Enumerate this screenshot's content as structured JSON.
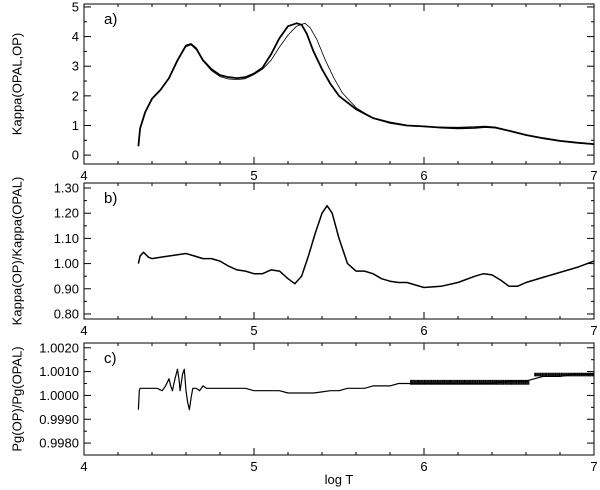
{
  "chart_data": [
    {
      "type": "line",
      "panel_label": "a)",
      "xlabel": "",
      "ylabel": "Kappa(OPAL,OP)",
      "xlim": [
        4,
        7
      ],
      "ylim": [
        -0.3,
        5.1
      ],
      "yticks": [
        0,
        1,
        2,
        3,
        4,
        5
      ],
      "ytick_labels": [
        "0",
        "1",
        "2",
        "3",
        "4",
        "5"
      ],
      "xticks": [
        4,
        5,
        6,
        7
      ],
      "xtick_labels": [
        "4",
        "5",
        "6",
        "7"
      ],
      "grid": false,
      "series": [
        {
          "color": "#000000",
          "width": 1.8,
          "points": [
            [
              4.32,
              0.3
            ],
            [
              4.33,
              0.9
            ],
            [
              4.36,
              1.45
            ],
            [
              4.4,
              1.9
            ],
            [
              4.45,
              2.2
            ],
            [
              4.5,
              2.6
            ],
            [
              4.55,
              3.2
            ],
            [
              4.6,
              3.7
            ],
            [
              4.63,
              3.75
            ],
            [
              4.66,
              3.6
            ],
            [
              4.7,
              3.2
            ],
            [
              4.75,
              2.9
            ],
            [
              4.8,
              2.7
            ],
            [
              4.85,
              2.63
            ],
            [
              4.9,
              2.6
            ],
            [
              4.95,
              2.63
            ],
            [
              5.0,
              2.75
            ],
            [
              5.05,
              2.95
            ],
            [
              5.1,
              3.4
            ],
            [
              5.15,
              3.95
            ],
            [
              5.2,
              4.35
            ],
            [
              5.25,
              4.45
            ],
            [
              5.28,
              4.4
            ],
            [
              5.31,
              4.1
            ],
            [
              5.35,
              3.5
            ],
            [
              5.4,
              2.9
            ],
            [
              5.45,
              2.4
            ],
            [
              5.5,
              2.0
            ],
            [
              5.6,
              1.55
            ],
            [
              5.7,
              1.25
            ],
            [
              5.8,
              1.1
            ],
            [
              5.9,
              1.0
            ],
            [
              6.0,
              0.97
            ],
            [
              6.1,
              0.93
            ],
            [
              6.2,
              0.9
            ],
            [
              6.3,
              0.92
            ],
            [
              6.36,
              0.95
            ],
            [
              6.42,
              0.93
            ],
            [
              6.5,
              0.82
            ],
            [
              6.6,
              0.68
            ],
            [
              6.7,
              0.57
            ],
            [
              6.8,
              0.48
            ],
            [
              6.9,
              0.42
            ],
            [
              7.0,
              0.37
            ]
          ]
        },
        {
          "color": "#000000",
          "width": 0.8,
          "points": [
            [
              4.32,
              0.3
            ],
            [
              4.33,
              0.9
            ],
            [
              4.36,
              1.45
            ],
            [
              4.4,
              1.9
            ],
            [
              4.45,
              2.2
            ],
            [
              4.5,
              2.6
            ],
            [
              4.55,
              3.2
            ],
            [
              4.6,
              3.66
            ],
            [
              4.63,
              3.72
            ],
            [
              4.66,
              3.56
            ],
            [
              4.7,
              3.18
            ],
            [
              4.75,
              2.85
            ],
            [
              4.8,
              2.65
            ],
            [
              4.85,
              2.57
            ],
            [
              4.9,
              2.55
            ],
            [
              4.95,
              2.58
            ],
            [
              5.0,
              2.72
            ],
            [
              5.05,
              2.9
            ],
            [
              5.1,
              3.2
            ],
            [
              5.15,
              3.65
            ],
            [
              5.2,
              4.05
            ],
            [
              5.25,
              4.35
            ],
            [
              5.3,
              4.45
            ],
            [
              5.33,
              4.3
            ],
            [
              5.37,
              3.9
            ],
            [
              5.42,
              3.2
            ],
            [
              5.47,
              2.6
            ],
            [
              5.52,
              2.1
            ],
            [
              5.6,
              1.6
            ],
            [
              5.7,
              1.25
            ],
            [
              5.8,
              1.07
            ],
            [
              5.9,
              0.99
            ],
            [
              6.0,
              0.96
            ],
            [
              6.1,
              0.95
            ],
            [
              6.2,
              0.94
            ],
            [
              6.3,
              0.96
            ],
            [
              6.36,
              0.98
            ],
            [
              6.42,
              0.95
            ],
            [
              6.5,
              0.82
            ],
            [
              6.6,
              0.67
            ],
            [
              6.7,
              0.56
            ],
            [
              6.8,
              0.47
            ],
            [
              6.9,
              0.41
            ],
            [
              7.0,
              0.36
            ]
          ]
        }
      ]
    },
    {
      "type": "line",
      "panel_label": "b)",
      "xlabel": "",
      "ylabel": "Kappa(OP)/Kappa(OPAL)",
      "xlim": [
        4,
        7
      ],
      "ylim": [
        0.78,
        1.32
      ],
      "yticks": [
        0.8,
        0.9,
        1.0,
        1.1,
        1.2,
        1.3
      ],
      "ytick_labels": [
        "0.80",
        "0.90",
        "1.00",
        "1.10",
        "1.20",
        "1.30"
      ],
      "xticks": [
        4,
        5,
        6,
        7
      ],
      "xtick_labels": [
        "4",
        "5",
        "6",
        "7"
      ],
      "grid": false,
      "series": [
        {
          "color": "#000000",
          "width": 1.5,
          "points": [
            [
              4.32,
              1.0
            ],
            [
              4.33,
              1.03
            ],
            [
              4.35,
              1.045
            ],
            [
              4.38,
              1.025
            ],
            [
              4.4,
              1.02
            ],
            [
              4.45,
              1.025
            ],
            [
              4.5,
              1.03
            ],
            [
              4.55,
              1.035
            ],
            [
              4.6,
              1.04
            ],
            [
              4.65,
              1.03
            ],
            [
              4.7,
              1.02
            ],
            [
              4.75,
              1.02
            ],
            [
              4.8,
              1.01
            ],
            [
              4.85,
              0.99
            ],
            [
              4.9,
              0.975
            ],
            [
              4.95,
              0.97
            ],
            [
              5.0,
              0.96
            ],
            [
              5.05,
              0.96
            ],
            [
              5.1,
              0.975
            ],
            [
              5.15,
              0.97
            ],
            [
              5.2,
              0.94
            ],
            [
              5.24,
              0.92
            ],
            [
              5.28,
              0.95
            ],
            [
              5.32,
              1.03
            ],
            [
              5.36,
              1.12
            ],
            [
              5.4,
              1.2
            ],
            [
              5.43,
              1.23
            ],
            [
              5.46,
              1.2
            ],
            [
              5.5,
              1.1
            ],
            [
              5.55,
              1.0
            ],
            [
              5.6,
              0.97
            ],
            [
              5.65,
              0.97
            ],
            [
              5.7,
              0.96
            ],
            [
              5.75,
              0.94
            ],
            [
              5.8,
              0.93
            ],
            [
              5.85,
              0.925
            ],
            [
              5.9,
              0.925
            ],
            [
              5.95,
              0.915
            ],
            [
              6.0,
              0.905
            ],
            [
              6.1,
              0.91
            ],
            [
              6.2,
              0.925
            ],
            [
              6.3,
              0.95
            ],
            [
              6.35,
              0.96
            ],
            [
              6.4,
              0.955
            ],
            [
              6.45,
              0.935
            ],
            [
              6.5,
              0.91
            ],
            [
              6.55,
              0.91
            ],
            [
              6.6,
              0.925
            ],
            [
              6.7,
              0.945
            ],
            [
              6.8,
              0.965
            ],
            [
              6.9,
              0.985
            ],
            [
              7.0,
              1.01
            ]
          ]
        }
      ]
    },
    {
      "type": "line",
      "panel_label": "c)",
      "xlabel": "log T",
      "ylabel": "Pg(OP)/Pg(OPAL)",
      "xlim": [
        4,
        7
      ],
      "ylim": [
        0.9975,
        1.0022
      ],
      "yticks": [
        0.998,
        0.999,
        1.0,
        1.001,
        1.002
      ],
      "ytick_labels": [
        "0.9980",
        "0.9990",
        "1.0000",
        "1.0010",
        "1.0020"
      ],
      "xticks": [
        4,
        5,
        6,
        7
      ],
      "xtick_labels": [
        "4",
        "5",
        "6",
        "7"
      ],
      "grid": false,
      "series": [
        {
          "color": "#000000",
          "width": 1.2,
          "points": [
            [
              4.32,
              0.9994
            ],
            [
              4.325,
              1.0002
            ],
            [
              4.33,
              1.0003
            ],
            [
              4.35,
              1.0003
            ],
            [
              4.38,
              1.0003
            ],
            [
              4.4,
              1.0003
            ],
            [
              4.43,
              1.0003
            ],
            [
              4.46,
              1.0002
            ],
            [
              4.48,
              1.0004
            ],
            [
              4.5,
              1.0007
            ],
            [
              4.51,
              1.0004
            ],
            [
              4.52,
              1.0002
            ],
            [
              4.535,
              1.0007
            ],
            [
              4.55,
              1.0011
            ],
            [
              4.56,
              1.0006
            ],
            [
              4.565,
              1.0002
            ],
            [
              4.58,
              1.0009
            ],
            [
              4.59,
              1.0011
            ],
            [
              4.6,
              1.0002
            ],
            [
              4.61,
              0.9997
            ],
            [
              4.62,
              0.9994
            ],
            [
              4.63,
              0.9999
            ],
            [
              4.64,
              1.0003
            ],
            [
              4.66,
              1.0003
            ],
            [
              4.68,
              1.0002
            ],
            [
              4.7,
              1.0004
            ],
            [
              4.72,
              1.0003
            ],
            [
              4.75,
              1.0003
            ],
            [
              4.8,
              1.0003
            ],
            [
              4.85,
              1.0003
            ],
            [
              4.9,
              1.0003
            ],
            [
              4.95,
              1.0003
            ],
            [
              5.0,
              1.0002
            ],
            [
              5.05,
              1.0002
            ],
            [
              5.1,
              1.0002
            ],
            [
              5.15,
              1.0002
            ],
            [
              5.2,
              1.0001
            ],
            [
              5.25,
              1.0001
            ],
            [
              5.3,
              1.0001
            ],
            [
              5.35,
              1.0001
            ],
            [
              5.4,
              1.00015
            ],
            [
              5.45,
              1.0002
            ],
            [
              5.5,
              1.0002
            ],
            [
              5.55,
              1.0003
            ],
            [
              5.6,
              1.0003
            ],
            [
              5.65,
              1.0003
            ],
            [
              5.7,
              1.0004
            ],
            [
              5.75,
              1.0004
            ],
            [
              5.8,
              1.0004
            ],
            [
              5.85,
              1.0005
            ],
            [
              5.9,
              1.0005
            ],
            [
              6.0,
              1.0005
            ],
            [
              6.1,
              1.0005
            ],
            [
              6.2,
              1.0005
            ],
            [
              6.3,
              1.0005
            ],
            [
              6.4,
              1.0005
            ],
            [
              6.5,
              1.0006
            ],
            [
              6.6,
              1.0006
            ],
            [
              6.7,
              1.0008
            ],
            [
              6.8,
              1.0008
            ],
            [
              6.9,
              1.0009
            ],
            [
              7.0,
              1.0009
            ]
          ]
        }
      ],
      "noise_bands": [
        {
          "x": [
            5.92,
            6.62
          ],
          "y": [
            1.00045,
            1.00065
          ]
        },
        {
          "x": [
            6.65,
            7.0
          ],
          "y": [
            1.0008,
            1.00095
          ]
        }
      ]
    }
  ]
}
